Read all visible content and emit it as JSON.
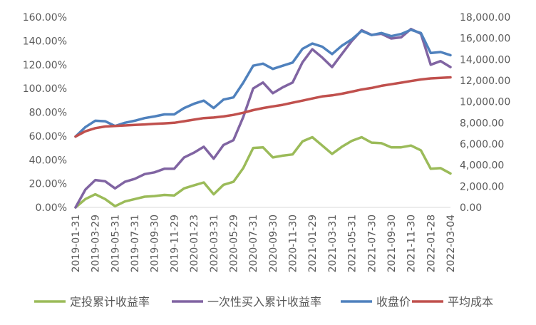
{
  "chart_data": {
    "type": "line",
    "x": [
      "2019-01-31",
      "2019-02-28",
      "2019-03-29",
      "2019-04-30",
      "2019-05-31",
      "2019-06-28",
      "2019-07-31",
      "2019-08-30",
      "2019-09-30",
      "2019-10-31",
      "2019-11-29",
      "2019-12-31",
      "2020-01-23",
      "2020-02-28",
      "2020-03-31",
      "2020-04-30",
      "2020-05-29",
      "2020-06-30",
      "2020-07-31",
      "2020-08-31",
      "2020-09-30",
      "2020-10-30",
      "2020-11-30",
      "2020-12-31",
      "2021-01-29",
      "2021-02-26",
      "2021-03-31",
      "2021-04-30",
      "2021-05-31",
      "2021-06-30",
      "2021-07-30",
      "2021-08-31",
      "2021-09-30",
      "2021-10-29",
      "2021-11-30",
      "2021-12-31",
      "2022-01-28",
      "2022-02-28",
      "2022-03-04"
    ],
    "x_tick_labels": [
      "2019-01-31",
      "2019-03-29",
      "2019-05-31",
      "2019-07-31",
      "2019-09-30",
      "2019-11-29",
      "2020-01-23",
      "2020-03-31",
      "2020-05-29",
      "2020-07-31",
      "2020-09-30",
      "2020-11-30",
      "2021-01-29",
      "2021-03-31",
      "2021-05-31",
      "2021-07-30",
      "2021-09-30",
      "2021-11-30",
      "2022-01-28",
      "2022-03-04"
    ],
    "left_axis": {
      "ylim": [
        0,
        160
      ],
      "ticks": [
        "0.00%",
        "20.00%",
        "40.00%",
        "60.00%",
        "80.00%",
        "100.00%",
        "120.00%",
        "140.00%",
        "160.00%"
      ]
    },
    "right_axis": {
      "ylim": [
        0,
        18000
      ],
      "ticks": [
        "0.00",
        "2,000.00",
        "4,000.00",
        "6,000.00",
        "8,000.00",
        "10,000.00",
        "12,000.00",
        "14,000.00",
        "16,000.00",
        "18,000.00"
      ]
    },
    "series": [
      {
        "name": "定投累计收益率",
        "axis": "left",
        "color": "#9BBB59",
        "values": [
          0,
          7,
          11,
          7,
          1,
          5,
          7,
          9,
          9.5,
          10.5,
          10,
          16,
          18.5,
          21,
          11,
          19,
          21.5,
          33,
          50,
          50.5,
          42,
          43.5,
          44.5,
          55.5,
          59,
          52,
          45,
          51,
          56,
          59,
          54.5,
          54,
          50.5,
          50.5,
          52,
          48,
          32.5,
          33,
          28.5
        ]
      },
      {
        "name": "一次性买入累计收益率",
        "axis": "left",
        "color": "#8064A2",
        "values": [
          0,
          15,
          23,
          22,
          16,
          21.5,
          24,
          28,
          29.5,
          32.5,
          32.5,
          42,
          46,
          51,
          41,
          52.5,
          56.5,
          76,
          100,
          105,
          96,
          101,
          105,
          122,
          133,
          126,
          118,
          129,
          140,
          149,
          145,
          146,
          142,
          143,
          150,
          146,
          120,
          123,
          118
        ]
      },
      {
        "name": "收盘价",
        "axis": "right",
        "color": "#4F81BD",
        "values": [
          6700,
          7600,
          8200,
          8150,
          7700,
          8000,
          8200,
          8450,
          8600,
          8800,
          8800,
          9400,
          9800,
          10100,
          9400,
          10200,
          10400,
          11800,
          13400,
          13600,
          13100,
          13400,
          13700,
          15000,
          15500,
          15200,
          14500,
          15300,
          15900,
          16700,
          16300,
          16500,
          16200,
          16400,
          16800,
          16500,
          14600,
          14700,
          14400
        ]
      },
      {
        "name": "平均成本",
        "axis": "right",
        "color": "#C0504D",
        "values": [
          6700,
          7200,
          7500,
          7650,
          7700,
          7750,
          7800,
          7850,
          7900,
          7950,
          8000,
          8150,
          8300,
          8450,
          8500,
          8600,
          8750,
          8950,
          9200,
          9400,
          9550,
          9700,
          9900,
          10100,
          10300,
          10500,
          10600,
          10750,
          10950,
          11150,
          11300,
          11500,
          11650,
          11800,
          11950,
          12100,
          12200,
          12250,
          12300
        ]
      }
    ]
  }
}
